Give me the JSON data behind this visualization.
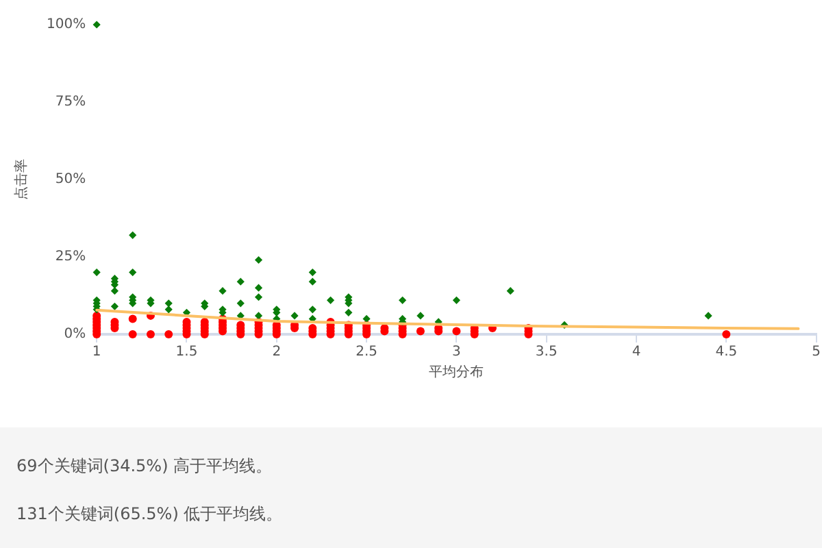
{
  "chart_data": {
    "type": "scatter",
    "xlabel": "平均分布",
    "ylabel": "点击率",
    "xlim": [
      1,
      5
    ],
    "xticks": [
      1,
      1.5,
      2,
      2.5,
      3,
      3.5,
      4,
      4.5,
      5
    ],
    "ylim": [
      0,
      100
    ],
    "yticks": [
      {
        "value": 0,
        "label": "0%"
      },
      {
        "value": 25,
        "label": "25%"
      },
      {
        "value": 50,
        "label": "50%"
      },
      {
        "value": 75,
        "label": "75%"
      },
      {
        "value": 100,
        "label": "100%"
      }
    ],
    "legend": false,
    "series": [
      {
        "type": "scatter",
        "color": "#0a7d0a",
        "marker": "diamond",
        "x": [
          1,
          1,
          1,
          1,
          1,
          1,
          1.1,
          1.1,
          1.1,
          1.1,
          1.1,
          1.2,
          1.2,
          1.2,
          1.2,
          1.2,
          1.3,
          1.3,
          1.4,
          1.4,
          1.5,
          1.6,
          1.6,
          1.7,
          1.7,
          1.7,
          1.8,
          1.8,
          1.8,
          1.9,
          1.9,
          1.9,
          1.9,
          2,
          2,
          2,
          2.1,
          2.2,
          2.2,
          2.2,
          2.2,
          2.3,
          2.4,
          2.4,
          2.4,
          2.4,
          2.5,
          2.7,
          2.7,
          2.7,
          2.8,
          2.9,
          3,
          3.3,
          3.6,
          4.4
        ],
        "values": [
          100,
          20,
          11,
          10,
          9,
          8,
          18,
          17,
          16,
          14,
          9,
          32,
          20,
          12,
          11,
          10,
          11,
          10,
          10,
          8,
          7,
          10,
          9,
          14,
          8,
          7,
          17,
          10,
          6,
          24,
          15,
          12,
          6,
          8,
          7,
          5,
          6,
          20,
          17,
          8,
          5,
          11,
          12,
          11,
          10,
          7,
          5,
          11,
          5,
          4,
          6,
          4,
          11,
          14,
          3,
          6
        ]
      },
      {
        "type": "scatter",
        "color": "#ff0000",
        "marker": "circle",
        "x": [
          1,
          1,
          1,
          1,
          1,
          1,
          1,
          1.1,
          1.1,
          1.1,
          1.2,
          1.2,
          1.3,
          1.3,
          1.4,
          1.5,
          1.5,
          1.5,
          1.5,
          1.5,
          1.6,
          1.6,
          1.6,
          1.6,
          1.6,
          1.7,
          1.7,
          1.7,
          1.7,
          1.7,
          1.8,
          1.8,
          1.8,
          1.8,
          1.9,
          1.9,
          1.9,
          1.9,
          1.9,
          2,
          2,
          2,
          2,
          2.1,
          2.1,
          2.2,
          2.2,
          2.2,
          2.3,
          2.3,
          2.3,
          2.3,
          2.3,
          2.4,
          2.4,
          2.4,
          2.4,
          2.5,
          2.5,
          2.5,
          2.5,
          2.6,
          2.6,
          2.7,
          2.7,
          2.7,
          2.7,
          2.8,
          2.9,
          2.9,
          3,
          3.1,
          3.1,
          3.1,
          3.2,
          3.4,
          3.4,
          3.4,
          4.5
        ],
        "values": [
          0,
          1,
          2,
          3,
          4,
          5,
          6,
          4,
          3,
          2,
          5,
          0,
          6,
          0,
          0,
          4,
          3,
          2,
          1,
          0,
          4,
          3,
          2,
          1,
          0,
          5,
          4,
          3,
          2,
          1,
          3,
          2,
          1,
          0,
          4,
          3,
          2,
          1,
          0,
          3,
          2,
          1,
          0,
          3,
          2,
          2,
          1,
          0,
          4,
          3,
          2,
          1,
          0,
          3,
          2,
          1,
          0,
          3,
          2,
          1,
          0,
          2,
          1,
          3,
          2,
          1,
          0,
          1,
          2,
          1,
          1,
          2,
          1,
          0,
          2,
          2,
          1,
          0,
          0
        ]
      },
      {
        "type": "line",
        "color": "#fbc065",
        "marker": "none",
        "x": [
          1,
          1.5,
          2,
          2.5,
          3,
          3.5,
          4,
          4.5,
          4.9
        ],
        "values": [
          7.8,
          6,
          4.2,
          3.6,
          3.1,
          2.6,
          2.3,
          2,
          1.8
        ]
      }
    ],
    "annotations": [
      "69个关键词(34.5%) 高于平均线。",
      "131个关键词(65.5%) 低于平均线。"
    ]
  }
}
